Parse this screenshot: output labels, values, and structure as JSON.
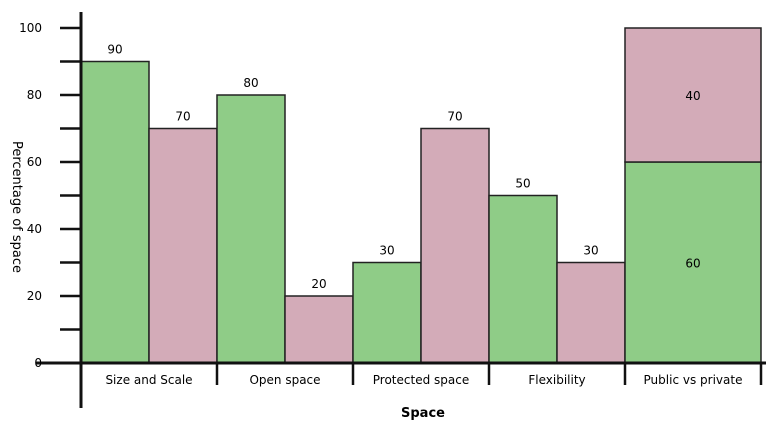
{
  "chart_data": {
    "type": "bar",
    "xlabel": "Space",
    "ylabel": "Percentage of space",
    "ylim": [
      0,
      100
    ],
    "yticks": [
      0,
      20,
      40,
      60,
      80,
      100
    ],
    "grid": false,
    "legend": "none",
    "colors": {
      "green": "#8fcc87",
      "pink": "#d3abb8",
      "stroke": "#222222"
    },
    "categories": [
      {
        "label": "Size and Scale",
        "bars": [
          {
            "value": 90,
            "color": "green"
          },
          {
            "value": 70,
            "color": "pink"
          }
        ]
      },
      {
        "label": "Open space",
        "bars": [
          {
            "value": 80,
            "color": "green"
          },
          {
            "value": 20,
            "color": "pink"
          }
        ]
      },
      {
        "label": "Protected space",
        "bars": [
          {
            "value": 30,
            "color": "green"
          },
          {
            "value": 70,
            "color": "pink"
          }
        ]
      },
      {
        "label": "Flexibility",
        "bars": [
          {
            "value": 50,
            "color": "green"
          },
          {
            "value": 30,
            "color": "pink"
          }
        ]
      },
      {
        "label": "Public vs private",
        "stacked": [
          {
            "value": 60,
            "color": "green"
          },
          {
            "value": 40,
            "color": "pink"
          }
        ]
      }
    ]
  }
}
